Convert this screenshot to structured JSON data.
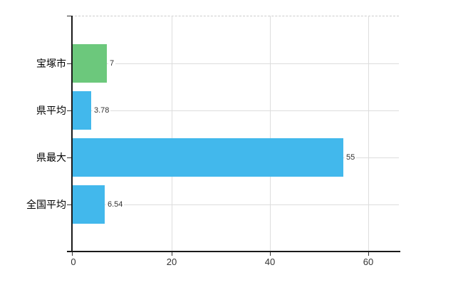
{
  "chart_data": {
    "type": "bar",
    "orientation": "horizontal",
    "title": "",
    "xlabel": "",
    "ylabel": "",
    "categories": [
      "宝塚市",
      "県平均",
      "県最大",
      "全国平均"
    ],
    "values": [
      7,
      3.78,
      55,
      6.54
    ],
    "value_labels": [
      "7",
      "3.78",
      "55",
      "6.54"
    ],
    "series": [
      {
        "name": "",
        "values": [
          7,
          3.78,
          55,
          6.54
        ]
      }
    ],
    "bar_colors": [
      "#6cc87c",
      "#42b8ec",
      "#42b8ec",
      "#42b8ec"
    ],
    "xlim": [
      0,
      66.2
    ],
    "xticks": [
      0,
      20,
      40,
      60
    ],
    "xtick_labels": [
      "0",
      "20",
      "40",
      "60"
    ],
    "grid": true,
    "legend_position": "none",
    "colors": {
      "bar_default": "#42b8ec",
      "bar_highlight": "#6cc87c",
      "grid": "#dddddd",
      "axis": "#1a1a1a",
      "top_border": "#cccccc",
      "value_label": "#333333",
      "tick_label": "#333333",
      "category_label": "#000000",
      "background": "#ffffff"
    }
  }
}
